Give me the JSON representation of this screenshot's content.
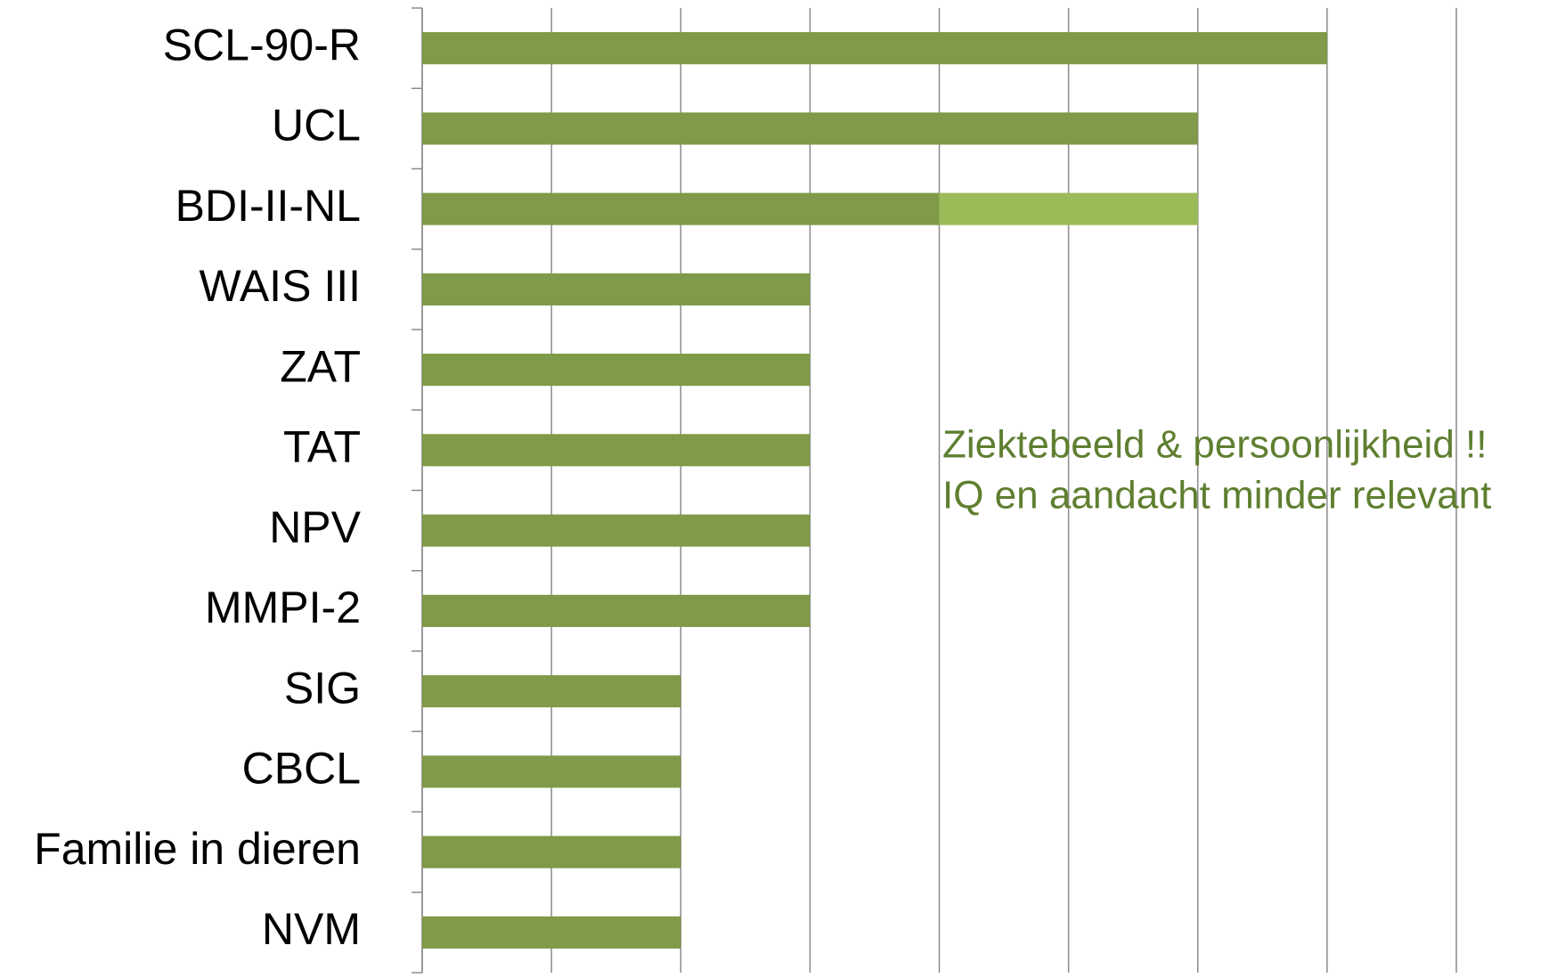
{
  "chart_data": {
    "type": "stacked-barh",
    "categories": [
      "SCL-90-R",
      "UCL",
      "BDI-II-NL",
      "WAIS III",
      "ZAT",
      "TAT",
      "NPV",
      "MMPI-2",
      "SIG",
      "CBCL",
      "Familie in dieren",
      "NVM"
    ],
    "series": [
      {
        "color": "#7f9a48",
        "values": [
          7,
          6,
          4,
          3,
          3,
          3,
          3,
          3,
          2,
          2,
          2,
          2
        ]
      },
      {
        "color": "#9bbb59",
        "values": [
          0,
          0,
          2,
          0,
          0,
          0,
          0,
          0,
          0,
          0,
          0,
          0
        ]
      }
    ],
    "xlim": [
      0,
      8
    ],
    "xticks": [
      0,
      1,
      2,
      3,
      4,
      5,
      6,
      7,
      8
    ],
    "grid": true,
    "annotations": [
      "Ziektebeeld & persoonlijkheid !!",
      "IQ en aandacht minder relevant"
    ],
    "annotation_color": "#5f7f30"
  }
}
